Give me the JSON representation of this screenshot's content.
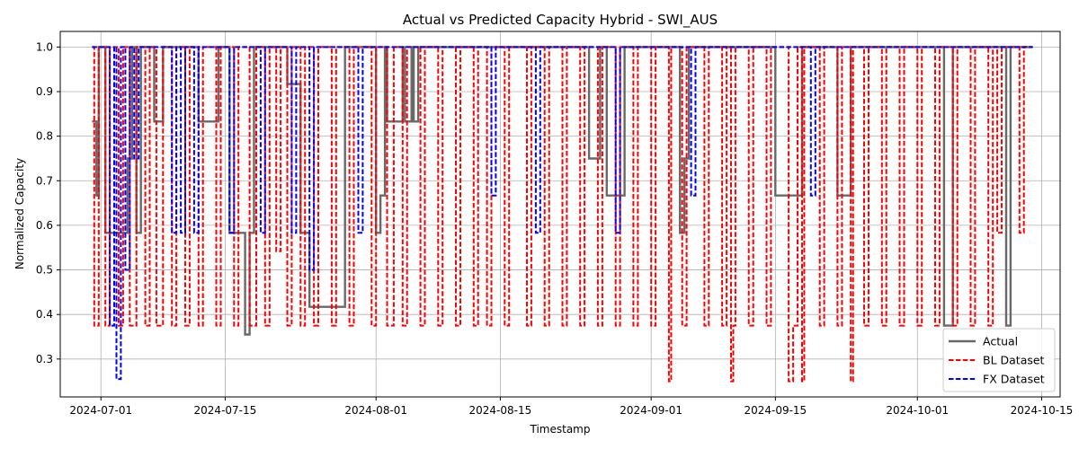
{
  "chart_data": {
    "type": "line",
    "title": "Actual vs Predicted Capacity Hybrid - SWI_AUS",
    "xlabel": "Timestamp",
    "ylabel": "Normalized Capacity",
    "x_range": [
      "2024-06-26T10:00",
      "2024-10-17T02:00"
    ],
    "ylim": [
      0.215,
      1.035
    ],
    "x_ticks": [
      "2024-07-01",
      "2024-07-15",
      "2024-08-01",
      "2024-08-15",
      "2024-09-01",
      "2024-09-15",
      "2024-10-01",
      "2024-10-15"
    ],
    "y_ticks": [
      0.3,
      0.4,
      0.5,
      0.6,
      0.7,
      0.8,
      0.9,
      1.0
    ],
    "y_tick_labels": [
      "0.3",
      "0.4",
      "0.5",
      "0.6",
      "0.7",
      "0.8",
      "0.9",
      "1.0"
    ],
    "grid": true,
    "legend_position": "lower-right",
    "series": [
      {
        "name": "Actual",
        "color": "#696969",
        "style": "solid",
        "points": [
          [
            "2024-06-30T00:00",
            0.833
          ],
          [
            "2024-06-30T12:00",
            0.667
          ],
          [
            "2024-06-30T18:00",
            1.0
          ],
          [
            "2024-07-01T12:00",
            0.583
          ],
          [
            "2024-07-04T00:00",
            0.75
          ],
          [
            "2024-07-04T12:00",
            1.0
          ],
          [
            "2024-07-05T00:00",
            0.583
          ],
          [
            "2024-07-05T12:00",
            1.0
          ],
          [
            "2024-07-07T00:00",
            0.833
          ],
          [
            "2024-07-08T00:00",
            1.0
          ],
          [
            "2024-07-12T00:00",
            0.833
          ],
          [
            "2024-07-14T06:00",
            1.0
          ],
          [
            "2024-07-15T12:00",
            0.583
          ],
          [
            "2024-07-17T06:00",
            0.355
          ],
          [
            "2024-07-17T18:00",
            0.583
          ],
          [
            "2024-07-18T06:00",
            1.0
          ],
          [
            "2024-07-22T00:00",
            0.917
          ],
          [
            "2024-07-23T12:00",
            0.583
          ],
          [
            "2024-07-24T12:00",
            0.417
          ],
          [
            "2024-07-28T12:00",
            1.0
          ],
          [
            "2024-08-01T00:00",
            0.583
          ],
          [
            "2024-08-01T12:00",
            0.667
          ],
          [
            "2024-08-02T00:00",
            1.0
          ],
          [
            "2024-08-02T06:00",
            0.833
          ],
          [
            "2024-08-04T00:00",
            1.0
          ],
          [
            "2024-08-04T06:00",
            0.833
          ],
          [
            "2024-08-05T00:00",
            1.0
          ],
          [
            "2024-08-05T06:00",
            0.833
          ],
          [
            "2024-08-05T18:00",
            1.0
          ],
          [
            "2024-08-25T00:00",
            0.75
          ],
          [
            "2024-08-26T06:00",
            1.0
          ],
          [
            "2024-08-27T00:00",
            0.667
          ],
          [
            "2024-08-29T00:00",
            1.0
          ],
          [
            "2024-09-04T06:00",
            0.583
          ],
          [
            "2024-09-04T18:00",
            0.75
          ],
          [
            "2024-09-05T06:00",
            1.0
          ],
          [
            "2024-09-15T00:00",
            0.667
          ],
          [
            "2024-09-18T00:00",
            1.0
          ],
          [
            "2024-09-22T00:00",
            0.667
          ],
          [
            "2024-09-23T12:00",
            1.0
          ],
          [
            "2024-10-04T00:00",
            0.375
          ],
          [
            "2024-10-05T00:00",
            1.0
          ],
          [
            "2024-10-11T00:00",
            0.375
          ],
          [
            "2024-10-11T12:00",
            1.0
          ],
          [
            "2024-10-14T00:00",
            1.0
          ]
        ]
      },
      {
        "name": "BL Dataset",
        "color": "#ff0000",
        "style": "dashed",
        "points": [
          [
            "2024-06-30T00:00",
            1.0
          ],
          [
            "2024-06-30T06:00",
            0.375
          ],
          [
            "2024-06-30T18:00",
            1.0
          ],
          [
            "2024-07-01T12:00",
            0.375
          ],
          [
            "2024-07-02T00:00",
            1.0
          ],
          [
            "2024-07-03T00:00",
            0.375
          ],
          [
            "2024-07-03T12:00",
            1.0
          ],
          [
            "2024-07-04T06:00",
            0.375
          ],
          [
            "2024-07-05T00:00",
            1.0
          ],
          [
            "2024-07-06T00:00",
            0.375
          ],
          [
            "2024-07-06T12:00",
            1.0
          ],
          [
            "2024-07-07T06:00",
            0.375
          ],
          [
            "2024-07-08T00:00",
            1.0
          ],
          [
            "2024-07-09T00:00",
            0.375
          ],
          [
            "2024-07-09T12:00",
            1.0
          ],
          [
            "2024-07-10T12:00",
            0.375
          ],
          [
            "2024-07-11T00:00",
            1.0
          ],
          [
            "2024-07-12T00:00",
            0.375
          ],
          [
            "2024-07-12T12:00",
            1.0
          ],
          [
            "2024-07-14T00:00",
            0.375
          ],
          [
            "2024-07-14T12:00",
            1.0
          ],
          [
            "2024-07-16T00:00",
            0.375
          ],
          [
            "2024-07-16T12:00",
            1.0
          ],
          [
            "2024-07-17T18:00",
            0.375
          ],
          [
            "2024-07-18T12:00",
            1.0
          ],
          [
            "2024-07-19T12:00",
            0.375
          ],
          [
            "2024-07-20T00:00",
            1.0
          ],
          [
            "2024-07-20T18:00",
            0.542
          ],
          [
            "2024-07-21T06:00",
            1.0
          ],
          [
            "2024-07-22T00:00",
            0.375
          ],
          [
            "2024-07-22T12:00",
            1.0
          ],
          [
            "2024-07-23T12:00",
            0.375
          ],
          [
            "2024-07-24T00:00",
            1.0
          ],
          [
            "2024-07-25T00:00",
            0.375
          ],
          [
            "2024-07-25T12:00",
            1.0
          ],
          [
            "2024-07-27T00:00",
            0.375
          ],
          [
            "2024-07-27T12:00",
            1.0
          ],
          [
            "2024-07-29T00:00",
            0.375
          ],
          [
            "2024-07-29T12:00",
            1.0
          ],
          [
            "2024-07-31T12:00",
            0.375
          ],
          [
            "2024-08-01T00:00",
            1.0
          ],
          [
            "2024-08-02T06:00",
            0.375
          ],
          [
            "2024-08-03T00:00",
            1.0
          ],
          [
            "2024-08-04T00:00",
            0.375
          ],
          [
            "2024-08-04T12:00",
            1.0
          ],
          [
            "2024-08-06T00:00",
            0.375
          ],
          [
            "2024-08-06T12:00",
            1.0
          ],
          [
            "2024-08-08T00:00",
            0.375
          ],
          [
            "2024-08-08T12:00",
            1.0
          ],
          [
            "2024-08-10T00:00",
            0.375
          ],
          [
            "2024-08-10T12:00",
            1.0
          ],
          [
            "2024-08-12T00:00",
            0.375
          ],
          [
            "2024-08-12T12:00",
            1.0
          ],
          [
            "2024-08-13T12:00",
            0.375
          ],
          [
            "2024-08-14T00:00",
            1.0
          ],
          [
            "2024-08-15T12:00",
            0.375
          ],
          [
            "2024-08-16T00:00",
            1.0
          ],
          [
            "2024-08-18T00:00",
            0.375
          ],
          [
            "2024-08-18T12:00",
            1.0
          ],
          [
            "2024-08-20T00:00",
            0.375
          ],
          [
            "2024-08-20T12:00",
            1.0
          ],
          [
            "2024-08-22T00:00",
            0.375
          ],
          [
            "2024-08-22T12:00",
            1.0
          ],
          [
            "2024-08-24T00:00",
            0.375
          ],
          [
            "2024-08-24T12:00",
            1.0
          ],
          [
            "2024-08-26T00:00",
            0.375
          ],
          [
            "2024-08-26T12:00",
            1.0
          ],
          [
            "2024-08-28T00:00",
            0.375
          ],
          [
            "2024-08-28T12:00",
            1.0
          ],
          [
            "2024-08-30T00:00",
            0.375
          ],
          [
            "2024-08-30T12:00",
            1.0
          ],
          [
            "2024-09-01T00:00",
            0.375
          ],
          [
            "2024-09-01T12:00",
            1.0
          ],
          [
            "2024-09-03T00:00",
            0.25
          ],
          [
            "2024-09-03T06:00",
            1.0
          ],
          [
            "2024-09-04T12:00",
            0.375
          ],
          [
            "2024-09-05T00:00",
            1.0
          ],
          [
            "2024-09-07T00:00",
            0.375
          ],
          [
            "2024-09-07T12:00",
            1.0
          ],
          [
            "2024-09-09T00:00",
            0.375
          ],
          [
            "2024-09-09T12:00",
            1.0
          ],
          [
            "2024-09-10T00:00",
            0.25
          ],
          [
            "2024-09-10T06:00",
            0.375
          ],
          [
            "2024-09-10T12:00",
            1.0
          ],
          [
            "2024-09-12T00:00",
            0.375
          ],
          [
            "2024-09-12T12:00",
            1.0
          ],
          [
            "2024-09-14T00:00",
            0.375
          ],
          [
            "2024-09-14T12:00",
            1.0
          ],
          [
            "2024-09-16T12:00",
            0.25
          ],
          [
            "2024-09-17T00:00",
            0.375
          ],
          [
            "2024-09-17T12:00",
            1.0
          ],
          [
            "2024-09-18T00:00",
            0.25
          ],
          [
            "2024-09-18T06:00",
            1.0
          ],
          [
            "2024-09-20T00:00",
            0.375
          ],
          [
            "2024-09-20T12:00",
            1.0
          ],
          [
            "2024-09-22T00:00",
            0.375
          ],
          [
            "2024-09-22T12:00",
            1.0
          ],
          [
            "2024-09-23T12:00",
            0.25
          ],
          [
            "2024-09-23T18:00",
            1.0
          ],
          [
            "2024-09-25T00:00",
            0.375
          ],
          [
            "2024-09-25T12:00",
            1.0
          ],
          [
            "2024-09-27T00:00",
            0.375
          ],
          [
            "2024-09-27T12:00",
            1.0
          ],
          [
            "2024-09-29T00:00",
            0.375
          ],
          [
            "2024-09-29T12:00",
            1.0
          ],
          [
            "2024-10-01T00:00",
            0.375
          ],
          [
            "2024-10-01T12:00",
            1.0
          ],
          [
            "2024-10-03T00:00",
            0.375
          ],
          [
            "2024-10-03T12:00",
            1.0
          ],
          [
            "2024-10-05T00:00",
            0.375
          ],
          [
            "2024-10-05T12:00",
            1.0
          ],
          [
            "2024-10-07T00:00",
            0.375
          ],
          [
            "2024-10-07T12:00",
            1.0
          ],
          [
            "2024-10-09T00:00",
            0.375
          ],
          [
            "2024-10-09T12:00",
            1.0
          ],
          [
            "2024-10-10T00:00",
            0.583
          ],
          [
            "2024-10-10T12:00",
            1.0
          ],
          [
            "2024-10-12T12:00",
            0.583
          ],
          [
            "2024-10-13T00:00",
            1.0
          ],
          [
            "2024-10-14T00:00",
            1.0
          ]
        ]
      },
      {
        "name": "FX Dataset",
        "color": "#0000ff",
        "style": "dashed",
        "points": [
          [
            "2024-06-30T00:00",
            1.0
          ],
          [
            "2024-07-01T12:00",
            1.0
          ],
          [
            "2024-07-02T00:00",
            0.375
          ],
          [
            "2024-07-02T12:00",
            1.0
          ],
          [
            "2024-07-02T18:00",
            0.255
          ],
          [
            "2024-07-03T06:00",
            1.0
          ],
          [
            "2024-07-03T18:00",
            0.5
          ],
          [
            "2024-07-04T06:00",
            1.0
          ],
          [
            "2024-07-04T18:00",
            0.75
          ],
          [
            "2024-07-05T06:00",
            1.0
          ],
          [
            "2024-07-09T00:00",
            0.583
          ],
          [
            "2024-07-09T12:00",
            1.0
          ],
          [
            "2024-07-10T00:00",
            0.583
          ],
          [
            "2024-07-10T12:00",
            1.0
          ],
          [
            "2024-07-11T12:00",
            0.583
          ],
          [
            "2024-07-12T00:00",
            1.0
          ],
          [
            "2024-07-15T12:00",
            0.583
          ],
          [
            "2024-07-16T00:00",
            1.0
          ],
          [
            "2024-07-19T00:00",
            0.583
          ],
          [
            "2024-07-19T12:00",
            1.0
          ],
          [
            "2024-07-22T12:00",
            0.583
          ],
          [
            "2024-07-23T00:00",
            1.0
          ],
          [
            "2024-07-24T12:00",
            0.5
          ],
          [
            "2024-07-25T00:00",
            1.0
          ],
          [
            "2024-07-30T00:00",
            0.583
          ],
          [
            "2024-07-30T12:00",
            1.0
          ],
          [
            "2024-08-14T00:00",
            0.667
          ],
          [
            "2024-08-14T12:00",
            1.0
          ],
          [
            "2024-08-19T00:00",
            0.583
          ],
          [
            "2024-08-19T12:00",
            1.0
          ],
          [
            "2024-08-28T00:00",
            0.583
          ],
          [
            "2024-08-28T12:00",
            1.0
          ],
          [
            "2024-09-05T12:00",
            0.667
          ],
          [
            "2024-09-06T00:00",
            1.0
          ],
          [
            "2024-09-19T00:00",
            0.667
          ],
          [
            "2024-09-19T12:00",
            1.0
          ],
          [
            "2024-10-14T00:00",
            1.0
          ]
        ]
      }
    ]
  }
}
